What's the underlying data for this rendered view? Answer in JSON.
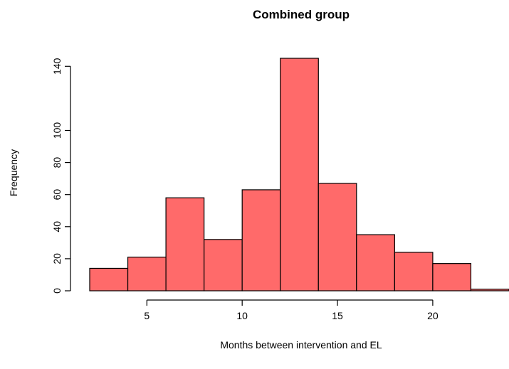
{
  "chart_data": {
    "type": "bar",
    "title": "Combined group",
    "xlabel": "Months between intervention and EL",
    "ylabel": "Frequency",
    "bin_edges": [
      2,
      4,
      6,
      8,
      10,
      12,
      14,
      16,
      18,
      20,
      22,
      24
    ],
    "values": [
      14,
      21,
      58,
      32,
      63,
      145,
      67,
      35,
      24,
      17,
      1
    ],
    "x_ticks": [
      5,
      10,
      15,
      20
    ],
    "y_ticks": [
      0,
      20,
      40,
      60,
      80,
      100,
      140
    ],
    "xlim": [
      2,
      24
    ],
    "ylim": [
      0,
      145
    ],
    "bar_color": "#ff6a6a",
    "edge_color": "#000000",
    "grid": false
  }
}
